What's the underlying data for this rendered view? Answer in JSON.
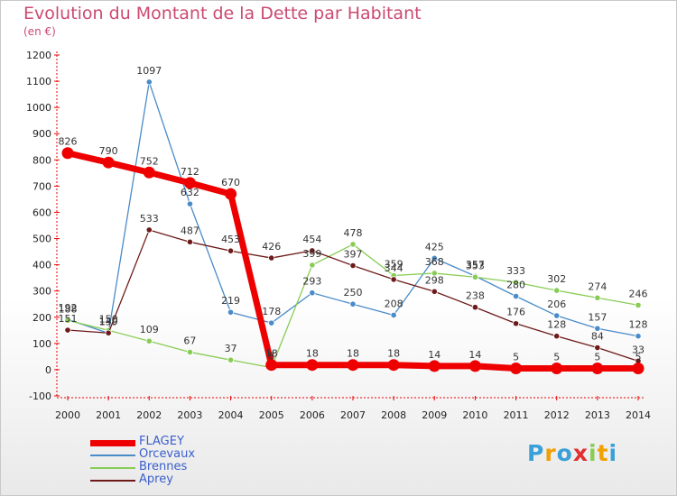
{
  "title": "Evolution du Montant de la Dette par Habitant",
  "subtitle": "(en €)",
  "logo": "Proxiti",
  "chart_data": {
    "type": "line",
    "title": "Evolution du Montant de la Dette par Habitant",
    "ylabel": "(en €)",
    "x": [
      "2000",
      "2001",
      "2002",
      "2003",
      "2004",
      "2005",
      "2006",
      "2007",
      "2008",
      "2009",
      "2010",
      "2011",
      "2012",
      "2013",
      "2014"
    ],
    "ylim": [
      -100,
      1200
    ],
    "yticks": [
      -100,
      0,
      100,
      200,
      300,
      400,
      500,
      600,
      700,
      800,
      900,
      1000,
      1100,
      1200
    ],
    "grid": false,
    "legend_position": "bottom-left",
    "series": [
      {
        "name": "FLAGEY",
        "color": "#ee0000",
        "values": [
          826,
          790,
          752,
          712,
          670,
          18,
          18,
          18,
          18,
          14,
          14,
          5,
          5,
          5,
          5
        ]
      },
      {
        "name": "Orcevaux",
        "color": "#4a8bc9",
        "values": [
          192,
          139,
          1097,
          632,
          219,
          178,
          293,
          250,
          208,
          425,
          357,
          280,
          206,
          157,
          128
        ]
      },
      {
        "name": "Brennes",
        "color": "#88cc55",
        "values": [
          188,
          150,
          109,
          67,
          37,
          8,
          399,
          478,
          359,
          368,
          353,
          333,
          302,
          274,
          246
        ]
      },
      {
        "name": "Aprey",
        "color": "#6e1a1a",
        "values": [
          151,
          140,
          533,
          487,
          453,
          426,
          454,
          397,
          344,
          298,
          238,
          176,
          128,
          84,
          33
        ]
      }
    ]
  }
}
